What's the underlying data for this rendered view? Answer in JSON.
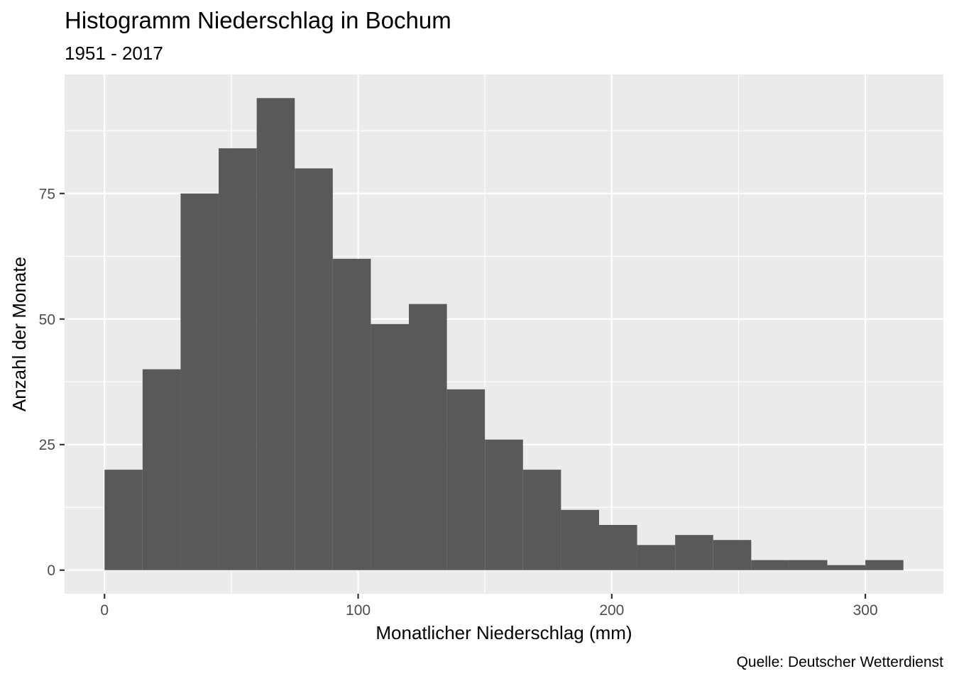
{
  "chart_data": {
    "type": "bar",
    "title": "Histogramm Niederschlag in Bochum",
    "subtitle": "1951 - 2017",
    "xlabel": "Monatlicher Niederschlag (mm)",
    "ylabel": "Anzahl der Monate",
    "caption": "Quelle: Deutscher Wetterdienst",
    "bins": [
      {
        "x0": 0,
        "x1": 15,
        "count": 20
      },
      {
        "x0": 15,
        "x1": 30,
        "count": 40
      },
      {
        "x0": 30,
        "x1": 45,
        "count": 75
      },
      {
        "x0": 45,
        "x1": 60,
        "count": 84
      },
      {
        "x0": 60,
        "x1": 75,
        "count": 94
      },
      {
        "x0": 75,
        "x1": 90,
        "count": 80
      },
      {
        "x0": 90,
        "x1": 105,
        "count": 62
      },
      {
        "x0": 105,
        "x1": 120,
        "count": 49
      },
      {
        "x0": 120,
        "x1": 135,
        "count": 53
      },
      {
        "x0": 135,
        "x1": 150,
        "count": 36
      },
      {
        "x0": 150,
        "x1": 165,
        "count": 26
      },
      {
        "x0": 165,
        "x1": 180,
        "count": 20
      },
      {
        "x0": 180,
        "x1": 195,
        "count": 12
      },
      {
        "x0": 195,
        "x1": 210,
        "count": 9
      },
      {
        "x0": 210,
        "x1": 225,
        "count": 5
      },
      {
        "x0": 225,
        "x1": 240,
        "count": 7
      },
      {
        "x0": 240,
        "x1": 255,
        "count": 6
      },
      {
        "x0": 255,
        "x1": 270,
        "count": 2
      },
      {
        "x0": 270,
        "x1": 285,
        "count": 2
      },
      {
        "x0": 285,
        "x1": 300,
        "count": 1
      },
      {
        "x0": 300,
        "x1": 315,
        "count": 2
      }
    ],
    "xlim": [
      -15.75,
      330.75
    ],
    "ylim": [
      -4.7,
      98.7
    ],
    "x_ticks": [
      0,
      100,
      200,
      300
    ],
    "x_tick_labels": [
      "0",
      "100",
      "200",
      "300"
    ],
    "x_minor_ticks": [
      50,
      150,
      250
    ],
    "y_ticks": [
      0,
      25,
      50,
      75
    ],
    "y_tick_labels": [
      "0",
      "25",
      "50",
      "75"
    ],
    "y_minor_ticks": [
      12.5,
      37.5,
      62.5,
      87.5
    ],
    "grid": true,
    "colors": {
      "bar": "#595959",
      "panel": "#ebebeb",
      "grid": "#ffffff",
      "tick_label": "#4d4d4d"
    }
  }
}
